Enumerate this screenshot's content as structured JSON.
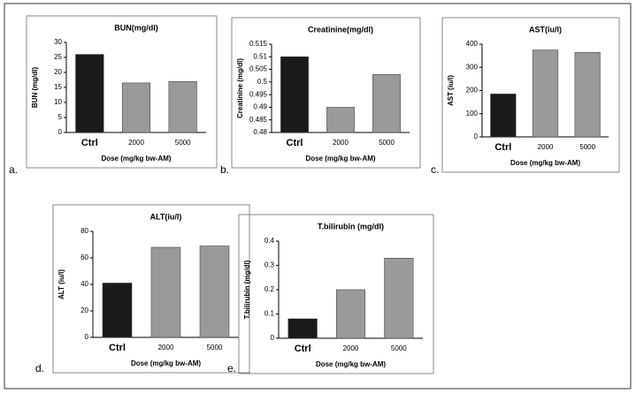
{
  "chart_data": [
    {
      "type": "bar",
      "panel_label": "a.",
      "title": "BUN(mg/dl)",
      "y_label": "BUN (mg/dl)",
      "x_label": "Dose (mg/kg bw-AM)",
      "categories": [
        "Ctrl",
        "2000",
        "5000"
      ],
      "values": [
        26,
        16.5,
        17
      ],
      "colors": [
        "#1a1a1a",
        "#9a9a9a",
        "#9a9a9a"
      ],
      "ylim": [
        0,
        30
      ],
      "yticks": [
        0,
        5,
        10,
        15,
        20,
        25,
        30
      ]
    },
    {
      "type": "bar",
      "panel_label": "b.",
      "title": "Creatinine(mg/dl)",
      "y_label": "Creatinine (mg/dl)",
      "x_label": "Dose (mg/kg bw-AM)",
      "categories": [
        "Ctrl",
        "2000",
        "5000"
      ],
      "values": [
        0.51,
        0.49,
        0.503
      ],
      "colors": [
        "#1a1a1a",
        "#9a9a9a",
        "#9a9a9a"
      ],
      "ylim": [
        0.48,
        0.515
      ],
      "yticks": [
        0.48,
        0.485,
        0.49,
        0.495,
        0.5,
        0.505,
        0.51,
        0.515
      ]
    },
    {
      "type": "bar",
      "panel_label": "c.",
      "title": "AST(iu/l)",
      "y_label": "AST (iu/l)",
      "x_label": "Dose (mg/kg bw-AM)",
      "categories": [
        "Ctrl",
        "2000",
        "5000"
      ],
      "values": [
        185,
        375,
        365
      ],
      "colors": [
        "#1a1a1a",
        "#9a9a9a",
        "#9a9a9a"
      ],
      "ylim": [
        0,
        400
      ],
      "yticks": [
        0,
        100,
        200,
        300,
        400
      ]
    },
    {
      "type": "bar",
      "panel_label": "d.",
      "title": "ALT(iu/l)",
      "y_label": "ALT (iu/l)",
      "x_label": "Dose (mg/kg bw-AM)",
      "categories": [
        "Ctrl",
        "2000",
        "5000"
      ],
      "values": [
        41,
        68,
        69
      ],
      "colors": [
        "#1a1a1a",
        "#9a9a9a",
        "#9a9a9a"
      ],
      "ylim": [
        0,
        80
      ],
      "yticks": [
        0,
        20,
        40,
        60,
        80
      ]
    },
    {
      "type": "bar",
      "panel_label": "e.",
      "title": "T.bilirubin (mg/dl)",
      "y_label": "T.bilirubin (mg/dl)",
      "x_label": "Dose (mg/kg bw-AM)",
      "categories": [
        "Ctrl",
        "2000",
        "5000"
      ],
      "values": [
        0.08,
        0.2,
        0.33
      ],
      "colors": [
        "#1a1a1a",
        "#9a9a9a",
        "#9a9a9a"
      ],
      "ylim": [
        0,
        0.4
      ],
      "yticks": [
        0,
        0.1,
        0.2,
        0.3,
        0.4
      ]
    }
  ]
}
